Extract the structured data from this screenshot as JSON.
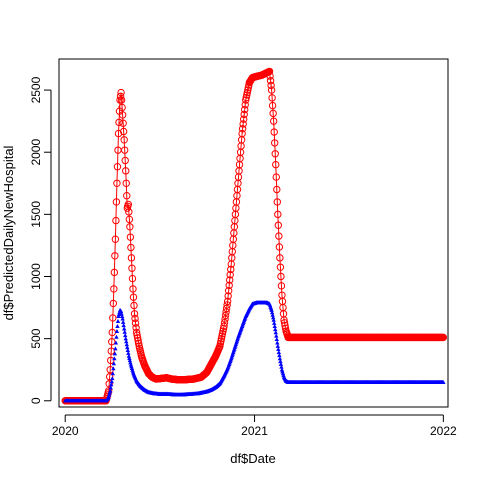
{
  "chart_data": {
    "type": "line",
    "title": "",
    "xlabel": "df$Date",
    "ylabel": "df$PredictedDailyNewHospital",
    "xlim": [
      "2019-12-20",
      "2022-01-10"
    ],
    "ylim": [
      -50,
      2750
    ],
    "x_ticks": [
      "2020-01-01",
      "2021-01-01",
      "2022-01-01"
    ],
    "x_tick_labels": [
      "2020",
      "2021",
      "2022"
    ],
    "y_ticks": [
      0,
      500,
      1000,
      1500,
      2000,
      2500
    ],
    "y_tick_labels": [
      "0",
      "500",
      "1000",
      "1500",
      "2000",
      "2500"
    ],
    "grid": false,
    "series": [
      {
        "color": "#ff0000",
        "marker": "open-circle",
        "line": true,
        "points": [
          [
            "2020-01-01",
            0
          ],
          [
            "2020-03-20",
            0
          ],
          [
            "2020-03-25",
            80
          ],
          [
            "2020-03-28",
            250
          ],
          [
            "2020-04-01",
            550
          ],
          [
            "2020-04-04",
            900
          ],
          [
            "2020-04-07",
            1300
          ],
          [
            "2020-04-10",
            1750
          ],
          [
            "2020-04-13",
            2150
          ],
          [
            "2020-04-16",
            2420
          ],
          [
            "2020-04-18",
            2480
          ],
          [
            "2020-04-21",
            2300
          ],
          [
            "2020-04-24",
            2100
          ],
          [
            "2020-04-27",
            1850
          ],
          [
            "2020-04-30",
            1550
          ],
          [
            "2020-05-02",
            1580
          ],
          [
            "2020-05-05",
            1400
          ],
          [
            "2020-05-08",
            1150
          ],
          [
            "2020-05-11",
            900
          ],
          [
            "2020-05-14",
            700
          ],
          [
            "2020-05-18",
            550
          ],
          [
            "2020-05-23",
            440
          ],
          [
            "2020-05-28",
            350
          ],
          [
            "2020-06-03",
            280
          ],
          [
            "2020-06-10",
            220
          ],
          [
            "2020-06-17",
            190
          ],
          [
            "2020-06-25",
            175
          ],
          [
            "2020-07-05",
            180
          ],
          [
            "2020-07-15",
            185
          ],
          [
            "2020-07-25",
            175
          ],
          [
            "2020-08-05",
            170
          ],
          [
            "2020-08-20",
            170
          ],
          [
            "2020-09-05",
            175
          ],
          [
            "2020-09-20",
            190
          ],
          [
            "2020-10-01",
            230
          ],
          [
            "2020-10-10",
            300
          ],
          [
            "2020-10-18",
            360
          ],
          [
            "2020-10-26",
            440
          ],
          [
            "2020-11-03",
            600
          ],
          [
            "2020-11-10",
            800
          ],
          [
            "2020-11-17",
            1100
          ],
          [
            "2020-11-24",
            1450
          ],
          [
            "2020-12-01",
            1800
          ],
          [
            "2020-12-08",
            2150
          ],
          [
            "2020-12-15",
            2420
          ],
          [
            "2020-12-22",
            2560
          ],
          [
            "2020-12-28",
            2600
          ],
          [
            "2021-01-05",
            2610
          ],
          [
            "2021-01-15",
            2620
          ],
          [
            "2021-01-25",
            2640
          ],
          [
            "2021-01-30",
            2650
          ],
          [
            "2021-02-03",
            2500
          ],
          [
            "2021-02-07",
            2250
          ],
          [
            "2021-02-11",
            1900
          ],
          [
            "2021-02-15",
            1500
          ],
          [
            "2021-02-19",
            1150
          ],
          [
            "2021-02-23",
            850
          ],
          [
            "2021-02-27",
            650
          ],
          [
            "2021-03-03",
            560
          ],
          [
            "2021-03-07",
            510
          ],
          [
            "2021-05-01",
            510
          ],
          [
            "2021-08-01",
            510
          ],
          [
            "2021-11-01",
            510
          ],
          [
            "2022-01-01",
            510
          ]
        ]
      },
      {
        "color": "#0000ff",
        "marker": "filled-triangle",
        "line": false,
        "points": [
          [
            "2020-01-01",
            0
          ],
          [
            "2020-03-20",
            0
          ],
          [
            "2020-03-25",
            30
          ],
          [
            "2020-03-28",
            80
          ],
          [
            "2020-04-01",
            180
          ],
          [
            "2020-04-04",
            300
          ],
          [
            "2020-04-07",
            420
          ],
          [
            "2020-04-10",
            560
          ],
          [
            "2020-04-13",
            680
          ],
          [
            "2020-04-16",
            730
          ],
          [
            "2020-04-18",
            720
          ],
          [
            "2020-04-21",
            660
          ],
          [
            "2020-04-24",
            580
          ],
          [
            "2020-04-27",
            500
          ],
          [
            "2020-04-30",
            430
          ],
          [
            "2020-05-03",
            360
          ],
          [
            "2020-05-07",
            290
          ],
          [
            "2020-05-12",
            220
          ],
          [
            "2020-05-18",
            160
          ],
          [
            "2020-05-25",
            120
          ],
          [
            "2020-06-02",
            90
          ],
          [
            "2020-06-10",
            70
          ],
          [
            "2020-06-20",
            60
          ],
          [
            "2020-07-01",
            55
          ],
          [
            "2020-07-15",
            55
          ],
          [
            "2020-08-01",
            50
          ],
          [
            "2020-08-15",
            50
          ],
          [
            "2020-09-01",
            55
          ],
          [
            "2020-09-15",
            60
          ],
          [
            "2020-10-01",
            75
          ],
          [
            "2020-10-10",
            90
          ],
          [
            "2020-10-18",
            110
          ],
          [
            "2020-10-26",
            140
          ],
          [
            "2020-11-03",
            200
          ],
          [
            "2020-11-10",
            260
          ],
          [
            "2020-11-17",
            340
          ],
          [
            "2020-11-24",
            430
          ],
          [
            "2020-12-01",
            520
          ],
          [
            "2020-12-08",
            600
          ],
          [
            "2020-12-15",
            680
          ],
          [
            "2020-12-22",
            740
          ],
          [
            "2020-12-28",
            780
          ],
          [
            "2021-01-05",
            790
          ],
          [
            "2021-01-15",
            790
          ],
          [
            "2021-01-25",
            790
          ],
          [
            "2021-01-30",
            780
          ],
          [
            "2021-02-03",
            730
          ],
          [
            "2021-02-07",
            650
          ],
          [
            "2021-02-11",
            550
          ],
          [
            "2021-02-15",
            440
          ],
          [
            "2021-02-19",
            340
          ],
          [
            "2021-02-23",
            250
          ],
          [
            "2021-02-27",
            190
          ],
          [
            "2021-03-03",
            160
          ],
          [
            "2021-03-07",
            150
          ],
          [
            "2021-05-01",
            150
          ],
          [
            "2021-08-01",
            150
          ],
          [
            "2021-11-01",
            150
          ],
          [
            "2022-01-01",
            150
          ]
        ]
      }
    ]
  }
}
